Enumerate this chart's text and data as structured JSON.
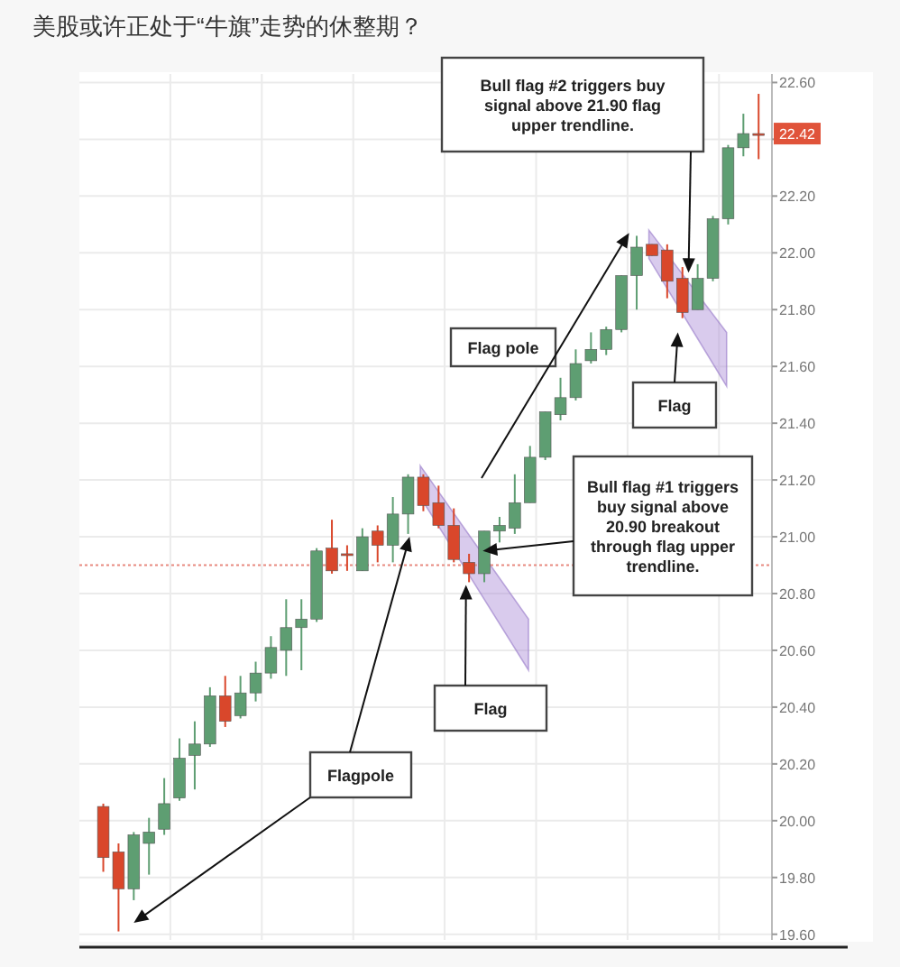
{
  "chart_data": {
    "type": "candlestick",
    "title": "美股或许正处于“牛旗”走势的休整期？",
    "categories": [
      null,
      null,
      null,
      null,
      null,
      null,
      null,
      null,
      null,
      null,
      null,
      null,
      null,
      null,
      null,
      null,
      null,
      null,
      null,
      null,
      null,
      null,
      null,
      null,
      null,
      null,
      null,
      null,
      null,
      null,
      null,
      null,
      null,
      null,
      null,
      null,
      null,
      null,
      null,
      null,
      null,
      null,
      null,
      null
    ],
    "ohlc": [
      [
        20.05,
        20.06,
        19.82,
        19.87
      ],
      [
        19.89,
        19.92,
        19.61,
        19.76
      ],
      [
        19.76,
        19.96,
        19.72,
        19.95
      ],
      [
        19.92,
        20.01,
        19.81,
        19.96
      ],
      [
        19.97,
        20.15,
        19.95,
        20.06
      ],
      [
        20.08,
        20.29,
        20.07,
        20.22
      ],
      [
        20.23,
        20.35,
        20.11,
        20.27
      ],
      [
        20.27,
        20.47,
        20.26,
        20.44
      ],
      [
        20.44,
        20.51,
        20.33,
        20.35
      ],
      [
        20.37,
        20.51,
        20.36,
        20.45
      ],
      [
        20.45,
        20.56,
        20.42,
        20.52
      ],
      [
        20.52,
        20.65,
        20.5,
        20.61
      ],
      [
        20.6,
        20.78,
        20.51,
        20.68
      ],
      [
        20.68,
        20.78,
        20.53,
        20.71
      ],
      [
        20.71,
        20.96,
        20.7,
        20.95
      ],
      [
        20.96,
        21.06,
        20.87,
        20.88
      ],
      [
        20.94,
        20.97,
        20.88,
        20.94
      ],
      [
        20.88,
        21.03,
        20.88,
        21.0
      ],
      [
        21.02,
        21.04,
        20.91,
        20.97
      ],
      [
        20.97,
        21.14,
        20.91,
        21.08
      ],
      [
        21.08,
        21.22,
        21.01,
        21.21
      ],
      [
        21.21,
        21.22,
        21.09,
        21.11
      ],
      [
        21.12,
        21.18,
        21.03,
        21.04
      ],
      [
        21.04,
        21.1,
        20.91,
        20.92
      ],
      [
        20.91,
        20.94,
        20.84,
        20.87
      ],
      [
        20.87,
        21.02,
        20.84,
        21.02
      ],
      [
        21.02,
        21.07,
        20.98,
        21.04
      ],
      [
        21.03,
        21.22,
        21.01,
        21.12
      ],
      [
        21.12,
        21.32,
        21.12,
        21.28
      ],
      [
        21.28,
        21.44,
        21.27,
        21.44
      ],
      [
        21.43,
        21.56,
        21.41,
        21.49
      ],
      [
        21.49,
        21.66,
        21.48,
        21.61
      ],
      [
        21.62,
        21.72,
        21.61,
        21.66
      ],
      [
        21.66,
        21.74,
        21.64,
        21.73
      ],
      [
        21.73,
        21.92,
        21.72,
        21.92
      ],
      [
        21.92,
        22.06,
        21.8,
        22.02
      ],
      [
        22.03,
        22.03,
        21.99,
        21.99
      ],
      [
        22.01,
        22.03,
        21.84,
        21.9
      ],
      [
        21.91,
        21.95,
        21.77,
        21.79
      ],
      [
        21.8,
        21.96,
        21.8,
        21.91
      ],
      [
        21.91,
        22.13,
        21.9,
        22.12
      ],
      [
        22.12,
        22.38,
        22.1,
        22.37
      ],
      [
        22.37,
        22.49,
        22.34,
        22.42
      ],
      [
        22.42,
        22.56,
        22.33,
        22.42
      ]
    ],
    "colors": [
      "#d9472b",
      "#d9472b",
      "#5e9e72",
      "#5e9e72",
      "#5e9e72",
      "#5e9e72",
      "#5e9e72",
      "#5e9e72",
      "#d9472b",
      "#5e9e72",
      "#5e9e72",
      "#5e9e72",
      "#5e9e72",
      "#5e9e72",
      "#5e9e72",
      "#d9472b",
      "#d9472b",
      "#5e9e72",
      "#d9472b",
      "#5e9e72",
      "#5e9e72",
      "#d9472b",
      "#d9472b",
      "#d9472b",
      "#d9472b",
      "#5e9e72",
      "#5e9e72",
      "#5e9e72",
      "#5e9e72",
      "#5e9e72",
      "#5e9e72",
      "#5e9e72",
      "#5e9e72",
      "#5e9e72",
      "#5e9e72",
      "#5e9e72",
      "#d9472b",
      "#d9472b",
      "#d9472b",
      "#5e9e72",
      "#5e9e72",
      "#5e9e72",
      "#5e9e72",
      "#d9472b"
    ],
    "ylim": [
      19.58,
      22.63
    ],
    "yticks": [
      {
        "value": 19.6,
        "label": "19.60"
      },
      {
        "value": 19.8,
        "label": "19.80"
      },
      {
        "value": 20.0,
        "label": "20.00"
      },
      {
        "value": 20.2,
        "label": "20.20"
      },
      {
        "value": 20.4,
        "label": "20.40"
      },
      {
        "value": 20.6,
        "label": "20.60"
      },
      {
        "value": 20.8,
        "label": "20.80"
      },
      {
        "value": 21.0,
        "label": "21.00"
      },
      {
        "value": 21.2,
        "label": "21.20"
      },
      {
        "value": 21.4,
        "label": "21.40"
      },
      {
        "value": 21.6,
        "label": "21.60"
      },
      {
        "value": 21.8,
        "label": "21.80"
      },
      {
        "value": 22.0,
        "label": "22.00"
      },
      {
        "value": 22.2,
        "label": "22.20"
      },
      {
        "value": 22.4,
        "label": null
      },
      {
        "value": 22.6,
        "label": "22.60"
      }
    ],
    "grid": true,
    "ref_lines": [
      {
        "axis": "y",
        "value": 20.9,
        "color": "#e88a80",
        "line_style": "dotted"
      }
    ],
    "annotations": [
      "Bull flag #2 triggers buy signal above 21.90 flag upper trendline.",
      "Flag pole",
      "Flag",
      "Bull flag #1 triggers buy signal above 20.90 breakout through flag upper trendline.",
      "Flag",
      "Flagpole",
      {
        "text": "22.42",
        "y": 22.42
      }
    ]
  }
}
